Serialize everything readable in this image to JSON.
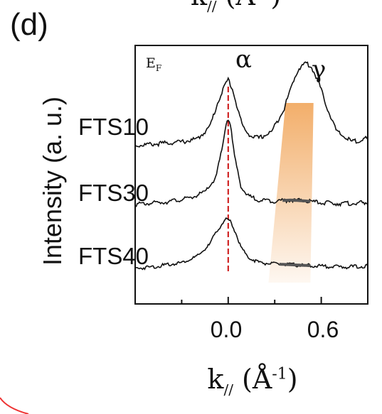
{
  "panel_label": "(d)",
  "chart_data": {
    "type": "line",
    "title": "",
    "xlabel": "k// (Å-1)",
    "ylabel": "Intensity (a. u.)",
    "xlim": [
      -0.6,
      0.9
    ],
    "xticks": [
      0.0,
      0.6
    ],
    "xtick_labels": [
      "0.0",
      "0.6"
    ],
    "y_units": "arbitrary (stacked offsets)",
    "annotations": {
      "ef": "E",
      "ef_sub": "F",
      "alpha": "α",
      "gamma": "γ"
    },
    "reference_line": {
      "x": 0.0,
      "style": "dashed",
      "color": "#cc1111"
    },
    "series": [
      {
        "name": "FTS10",
        "x": [
          -0.6,
          -0.45,
          -0.3,
          -0.2,
          -0.12,
          -0.06,
          -0.03,
          0.0,
          0.03,
          0.06,
          0.1,
          0.15,
          0.2,
          0.28,
          0.36,
          0.42,
          0.45,
          0.5,
          0.54,
          0.58,
          0.64,
          0.7,
          0.8,
          0.9
        ],
        "y": [
          0.0,
          0.02,
          0.04,
          0.07,
          0.2,
          0.5,
          0.62,
          0.72,
          0.6,
          0.4,
          0.18,
          0.1,
          0.08,
          0.15,
          0.4,
          0.7,
          0.82,
          0.9,
          0.84,
          0.7,
          0.4,
          0.15,
          0.04,
          0.08
        ]
      },
      {
        "name": "FTS30",
        "x": [
          -0.6,
          -0.4,
          -0.25,
          -0.15,
          -0.08,
          -0.04,
          -0.01,
          0.01,
          0.04,
          0.08,
          0.12,
          0.2,
          0.3,
          0.4,
          0.5,
          0.6,
          0.75,
          0.9
        ],
        "y": [
          0.0,
          0.03,
          0.07,
          0.14,
          0.3,
          0.62,
          0.95,
          0.95,
          0.55,
          0.22,
          0.1,
          0.05,
          0.04,
          0.05,
          0.04,
          0.02,
          0.01,
          0.02
        ]
      },
      {
        "name": "FTS40",
        "x": [
          -0.6,
          -0.45,
          -0.3,
          -0.2,
          -0.12,
          -0.08,
          -0.04,
          -0.01,
          0.01,
          0.04,
          0.08,
          0.12,
          0.2,
          0.3,
          0.4,
          0.5,
          0.6,
          0.75,
          0.9
        ],
        "y": [
          0.0,
          0.03,
          0.08,
          0.16,
          0.32,
          0.48,
          0.6,
          0.66,
          0.64,
          0.52,
          0.3,
          0.16,
          0.08,
          0.06,
          0.05,
          0.04,
          0.03,
          0.02,
          0.03
        ]
      }
    ],
    "gamma_bands": [
      {
        "series": "FTS30",
        "x_range": [
          0.35,
          0.53
        ],
        "color": "#555555"
      },
      {
        "series": "FTS40",
        "x_range": [
          0.33,
          0.53
        ],
        "color": "#555555"
      }
    ],
    "highlight_color": "#f0a050",
    "grid": false,
    "legend": "none (series labeled inline at left)"
  }
}
